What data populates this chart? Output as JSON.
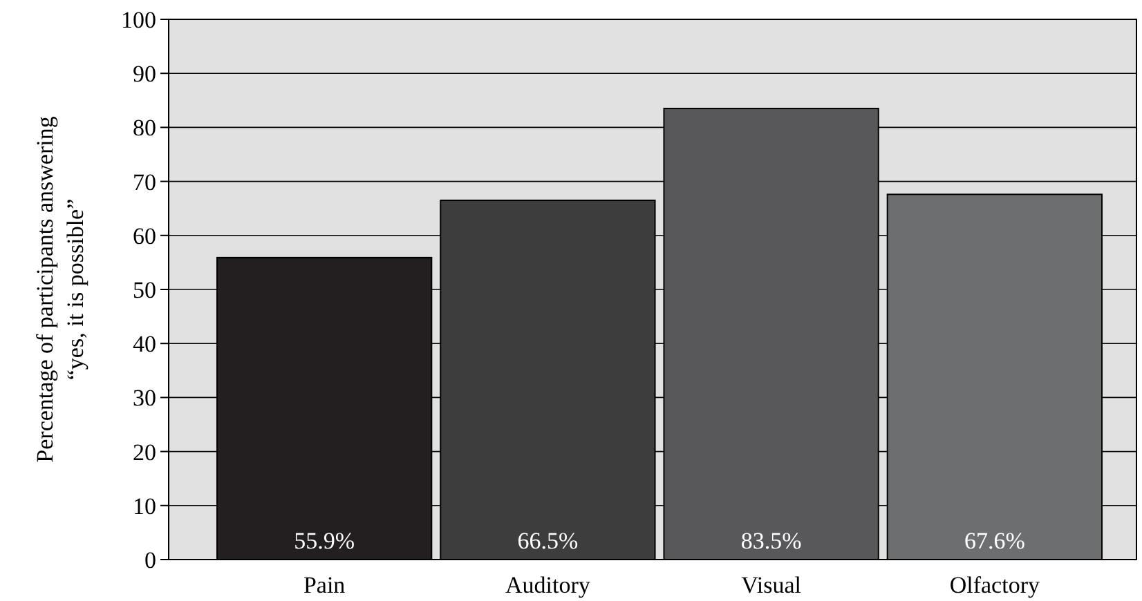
{
  "chart_data": {
    "type": "bar",
    "ylabel": "Percentage of participants answering\n“yes, it is possible”",
    "categories": [
      "Pain",
      "Auditory",
      "Visual",
      "Olfactory"
    ],
    "values": [
      55.9,
      66.5,
      83.5,
      67.6
    ],
    "colors": [
      "#231f20",
      "#3d3d3e",
      "#58585a",
      "#6d6e70"
    ],
    "value_labels": [
      "55.9%",
      "66.5%",
      "83.5%",
      "67.6%"
    ],
    "ylim": [
      0,
      100
    ],
    "yticks": [
      0,
      10,
      20,
      30,
      40,
      50,
      60,
      70,
      80,
      90,
      100
    ],
    "grid": "y"
  }
}
